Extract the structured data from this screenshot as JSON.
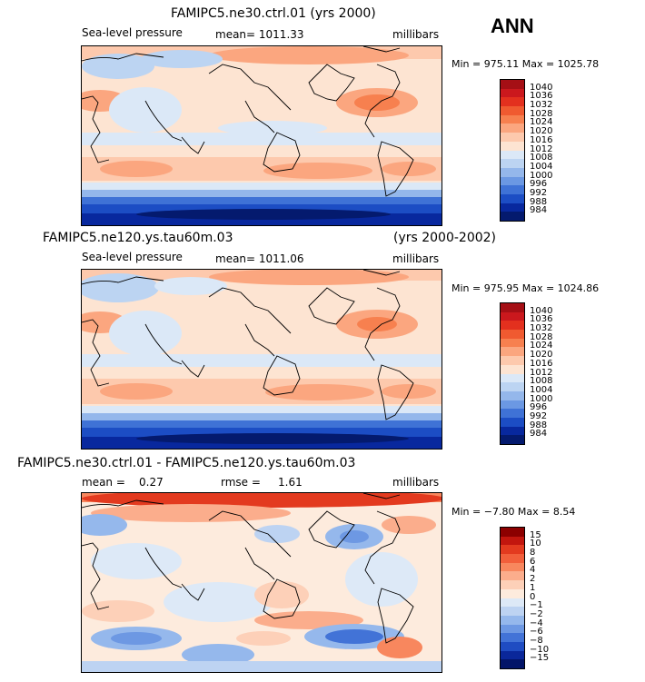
{
  "season": "ANN",
  "panels": [
    {
      "title": "FAMIPC5.ne30.ctrl.01 (yrs 2000)",
      "variable": "Sea-level pressure",
      "stat": "mean= 1011.33",
      "units": "millibars",
      "minmax": "Min = 975.11 Max = 1025.78",
      "levels": [
        "1040",
        "1036",
        "1032",
        "1028",
        "1024",
        "1020",
        "1016",
        "1012",
        "1008",
        "1004",
        "1000",
        "996",
        "992",
        "988",
        "984"
      ],
      "colors": [
        "#a50f15",
        "#cb181d",
        "#e3301e",
        "#f05a30",
        "#f7804f",
        "#fba67f",
        "#fdc9ad",
        "#fde4d2",
        "#dbe8f7",
        "#bcd4f2",
        "#94b7eb",
        "#6b98e3",
        "#3f72d6",
        "#1c4dc4",
        "#08289e",
        "#041a6e"
      ]
    },
    {
      "title": "FAMIPC5.ne120.ys.tau60m.03",
      "years": "(yrs 2000-2002)",
      "variable": "Sea-level pressure",
      "stat": "mean= 1011.06",
      "units": "millibars",
      "minmax": "Min = 975.95 Max = 1024.86",
      "levels": [
        "1040",
        "1036",
        "1032",
        "1028",
        "1024",
        "1020",
        "1016",
        "1012",
        "1008",
        "1004",
        "1000",
        "996",
        "992",
        "988",
        "984"
      ]
    },
    {
      "title": "FAMIPC5.ne30.ctrl.01 - FAMIPC5.ne120.ys.tau60m.03",
      "stat_mean_label": "mean =",
      "stat_mean_value": "0.27",
      "stat_rmse_label": "rmse =",
      "stat_rmse_value": "1.61",
      "units": "millibars",
      "minmax": "Min = −7.80 Max = 8.54",
      "levels": [
        "15",
        "10",
        "8",
        "6",
        "4",
        "2",
        "1",
        "0",
        "−1",
        "−2",
        "−4",
        "−6",
        "−8",
        "−10",
        "−15"
      ],
      "colors": [
        "#8c0000",
        "#c2160e",
        "#e33a1f",
        "#f25f3b",
        "#f8875e",
        "#fbad8c",
        "#fdd0b8",
        "#fdebdd",
        "#dde9f7",
        "#bdd3f2",
        "#95b8ec",
        "#6d98e3",
        "#4273d7",
        "#1f4cc2",
        "#0a279a",
        "#021468"
      ]
    }
  ]
}
